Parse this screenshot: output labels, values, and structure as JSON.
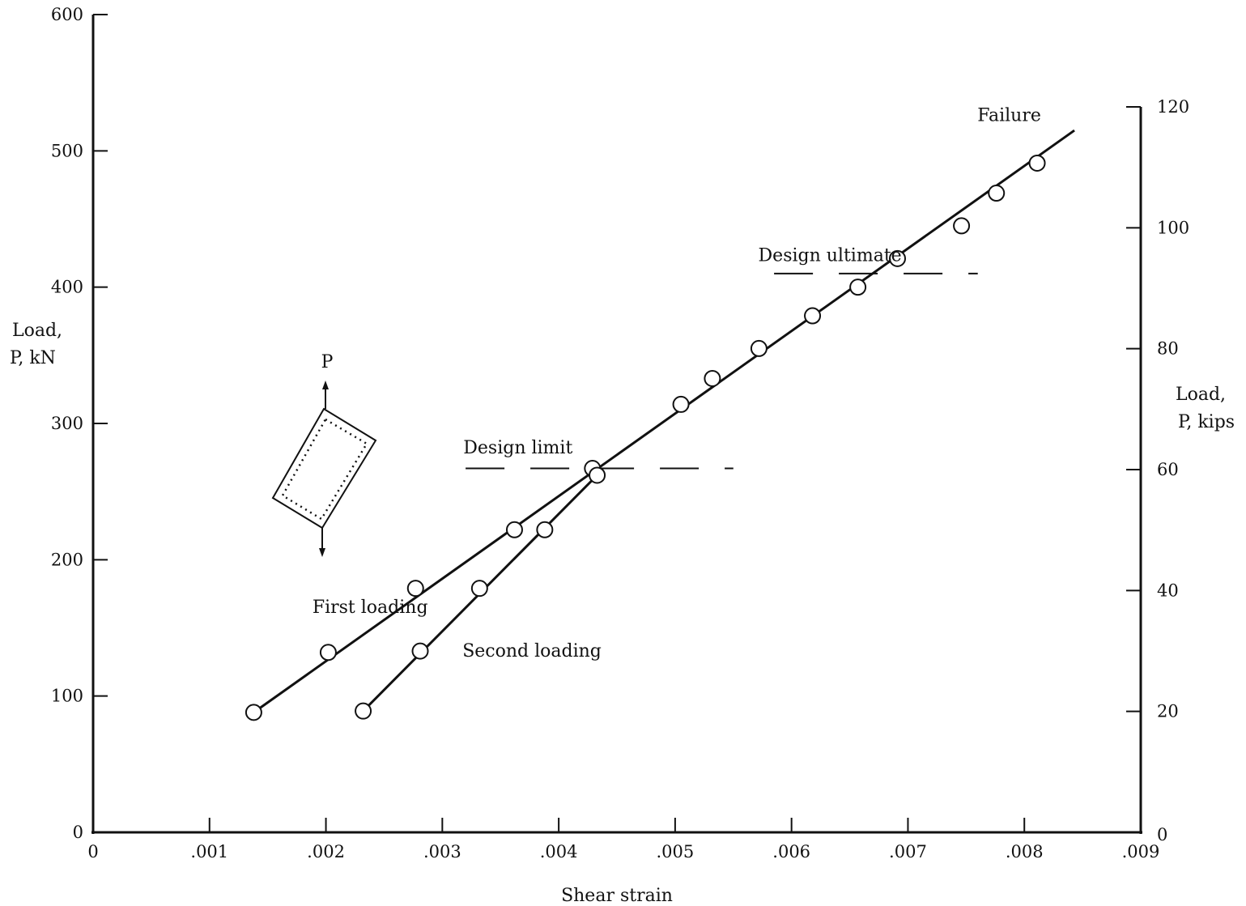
{
  "chart_data": {
    "type": "scatter",
    "title": "",
    "xlabel": "Shear strain",
    "ylabel_left": [
      "Load,",
      "P, kN"
    ],
    "ylabel_right": [
      "Load,",
      "P, kips"
    ],
    "xlim": [
      0,
      0.009
    ],
    "ylim_left": [
      0,
      600
    ],
    "ylim_right": [
      0,
      133.33
    ],
    "x_ticks": [
      0,
      0.001,
      0.002,
      0.003,
      0.004,
      0.005,
      0.006,
      0.007,
      0.008,
      0.009
    ],
    "x_tick_labels": [
      "0",
      ".001",
      ".002",
      ".003",
      ".004",
      ".005",
      ".006",
      ".007",
      ".008",
      ".009"
    ],
    "y_left_ticks": [
      0,
      100,
      200,
      300,
      400,
      500,
      600
    ],
    "y_left_tick_labels": [
      "0",
      "100",
      "200",
      "300",
      "400",
      "500",
      "600"
    ],
    "y_right_ticks": [
      0,
      20,
      40,
      60,
      80,
      100,
      120
    ],
    "y_right_tick_labels": [
      "0",
      "20",
      "40",
      "60",
      "80",
      "100",
      "120"
    ],
    "grid": false,
    "series": [
      {
        "name": "First loading",
        "marker": "open-circle",
        "points": [
          [
            0.00138,
            88
          ],
          [
            0.00202,
            132
          ],
          [
            0.00277,
            179
          ],
          [
            0.00362,
            222
          ],
          [
            0.00429,
            267
          ],
          [
            0.00505,
            314
          ],
          [
            0.00532,
            333
          ],
          [
            0.00572,
            355
          ],
          [
            0.00618,
            379
          ],
          [
            0.00657,
            400
          ],
          [
            0.00691,
            421
          ],
          [
            0.00746,
            445
          ],
          [
            0.00776,
            469
          ],
          [
            0.00811,
            491
          ]
        ],
        "fit_line": [
          [
            0.00138,
            88
          ],
          [
            0.00843,
            515
          ]
        ]
      },
      {
        "name": "Second loading",
        "marker": "open-circle",
        "points": [
          [
            0.00232,
            89
          ],
          [
            0.00281,
            133
          ],
          [
            0.00332,
            179
          ],
          [
            0.00388,
            222
          ],
          [
            0.00433,
            262
          ]
        ],
        "fit_line": [
          [
            0.00232,
            89
          ],
          [
            0.00433,
            262
          ]
        ]
      }
    ],
    "reference_lines": [
      {
        "label": "Design limit",
        "y": 267,
        "x_range": [
          0.0032,
          0.0055
        ]
      },
      {
        "label": "Design ultimate",
        "y": 410,
        "x_range": [
          0.00585,
          0.0076
        ]
      }
    ],
    "annotations": [
      {
        "text": "Failure",
        "x": 0.00787,
        "y": 522
      },
      {
        "text": "First loading",
        "x": 0.00238,
        "y": 161
      },
      {
        "text": "Second loading",
        "x": 0.00377,
        "y": 129
      },
      {
        "text": "Design limit",
        "x": 0.00365,
        "y": 278
      },
      {
        "text": "Design ultimate",
        "x": 0.00633,
        "y": 419
      },
      {
        "text": "P",
        "x": 0.00201,
        "y": 341
      }
    ]
  }
}
